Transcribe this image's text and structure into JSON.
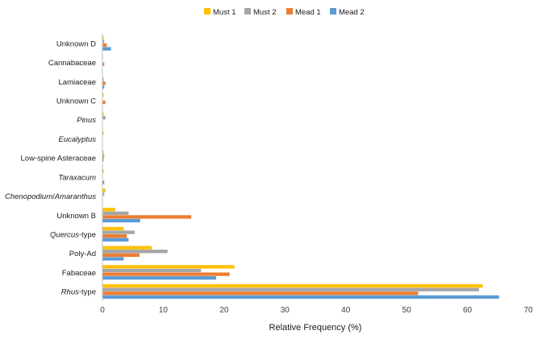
{
  "chart_data": {
    "type": "bar",
    "orientation": "horizontal",
    "title": "",
    "xlabel": "Relative Frequency (%)",
    "ylabel": "",
    "xlim": [
      0,
      70
    ],
    "x_ticks": [
      0,
      10,
      20,
      30,
      40,
      50,
      60,
      70
    ],
    "grid": false,
    "legend_position": "top-right",
    "categories": [
      "Unknown D",
      "Cannabaceae",
      "Lamiaceae",
      "Unknown C",
      "Pinus",
      "Eucalyptus",
      "Low-spine Asteraceae",
      "Taraxacum",
      "Chenopodium/Amaranthus",
      "Unknown B",
      "Quercus-type",
      "Poly-Ad",
      "Fabaceae",
      "Rhus-type"
    ],
    "category_labels": [
      [
        {
          "text": "Unknown D",
          "italic": false
        }
      ],
      [
        {
          "text": "Cannabaceae",
          "italic": false
        }
      ],
      [
        {
          "text": "Lamiaceae",
          "italic": false
        }
      ],
      [
        {
          "text": "Unknown C",
          "italic": false
        }
      ],
      [
        {
          "text": "Pinus",
          "italic": true
        }
      ],
      [
        {
          "text": "Eucalyptus",
          "italic": true
        }
      ],
      [
        {
          "text": "Low-spine Asteraceae",
          "italic": false
        }
      ],
      [
        {
          "text": "Taraxacum",
          "italic": true
        }
      ],
      [
        {
          "text": "Chenopodium",
          "italic": true
        },
        {
          "text": "/",
          "italic": false
        },
        {
          "text": "Amaranthus",
          "italic": true
        }
      ],
      [
        {
          "text": "Unknown B",
          "italic": false
        }
      ],
      [
        {
          "text": "Quercus",
          "italic": true
        },
        {
          "text": "-type",
          "italic": false
        }
      ],
      [
        {
          "text": "Poly-Ad",
          "italic": false
        }
      ],
      [
        {
          "text": "Fabaceae",
          "italic": false
        }
      ],
      [
        {
          "text": "Rhus",
          "italic": true
        },
        {
          "text": "-type",
          "italic": false
        }
      ]
    ],
    "series": [
      {
        "name": "Must 1",
        "color": "#FFC000",
        "values": [
          0.2,
          0.0,
          0.0,
          0.2,
          0.2,
          0.2,
          0.2,
          0.2,
          0.5,
          2.1,
          3.5,
          8.1,
          21.7,
          62.5
        ]
      },
      {
        "name": "Must 2",
        "color": "#A5A5A5",
        "values": [
          0.3,
          0.0,
          0.2,
          0.0,
          0.5,
          0.0,
          0.3,
          0.0,
          0.3,
          4.3,
          5.3,
          10.7,
          16.2,
          61.9
        ]
      },
      {
        "name": "Mead 1",
        "color": "#ED7D31",
        "values": [
          0.7,
          0.3,
          0.5,
          0.5,
          0.0,
          0.0,
          0.2,
          0.0,
          0.0,
          14.6,
          4.0,
          6.1,
          20.9,
          51.9
        ]
      },
      {
        "name": "Mead 2",
        "color": "#5B9BD5",
        "values": [
          1.4,
          0.0,
          0.3,
          0.0,
          0.0,
          0.0,
          0.0,
          0.3,
          0.0,
          6.2,
          4.3,
          3.5,
          18.7,
          65.2
        ]
      }
    ]
  }
}
